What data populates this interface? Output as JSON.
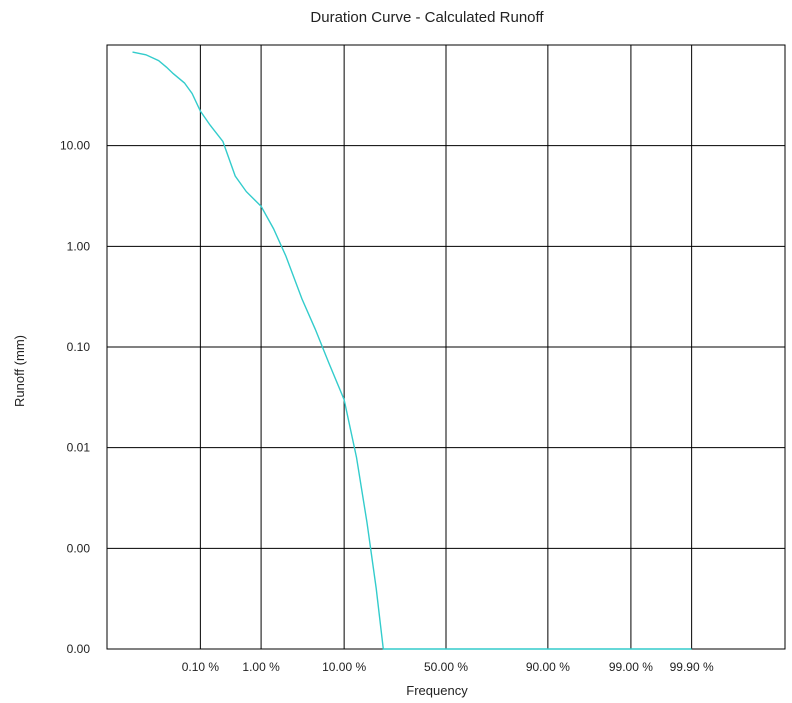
{
  "chart_data": {
    "type": "line",
    "title": "Duration Curve - Calculated Runoff",
    "xlabel": "Frequency",
    "ylabel": "Runoff (mm)",
    "x_scale": "probability",
    "y_scale": "log",
    "grid": true,
    "xticks": [
      {
        "p": 0.1,
        "label": "0.10 %"
      },
      {
        "p": 1,
        "label": "1.00 %"
      },
      {
        "p": 10,
        "label": "10.00 %"
      },
      {
        "p": 50,
        "label": "50.00 %"
      },
      {
        "p": 90,
        "label": "90.00 %"
      },
      {
        "p": 99,
        "label": "99.00 %"
      },
      {
        "p": 99.9,
        "label": "99.90 %"
      }
    ],
    "yticks": [
      {
        "v": 10,
        "label": "10.00"
      },
      {
        "v": 1,
        "label": "1.00"
      },
      {
        "v": 0.1,
        "label": "0.10"
      },
      {
        "v": 0.01,
        "label": "0.01"
      },
      {
        "v": 0.001,
        "label": "0.00"
      },
      {
        "v": 0.0001,
        "label": "0.00"
      }
    ],
    "xlim": [
      0.001,
      99.999
    ],
    "ylim": [
      0.0001,
      100
    ],
    "series": [
      {
        "color": "#33cccc",
        "x": [
          0.004,
          0.008,
          0.015,
          0.022,
          0.03,
          0.05,
          0.07,
          0.1,
          0.15,
          0.25,
          0.4,
          0.6,
          1.0,
          1.5,
          2.2,
          3.5,
          5,
          7,
          10,
          13,
          16,
          19,
          21.5,
          99.9
        ],
        "y": [
          85,
          80,
          70,
          60,
          52,
          42,
          33,
          22,
          16,
          11,
          5,
          3.5,
          2.5,
          1.5,
          0.8,
          0.3,
          0.15,
          0.07,
          0.03,
          0.008,
          0.0018,
          0.0004,
          0.0001,
          0.0001
        ]
      }
    ]
  }
}
